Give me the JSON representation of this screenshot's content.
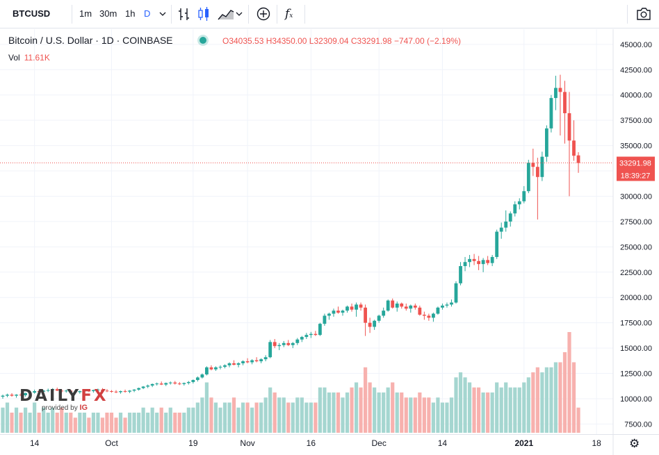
{
  "toolbar": {
    "symbol": "BTCUSD",
    "intervals": [
      "1m",
      "30m",
      "1h",
      "D"
    ],
    "active_interval": "D",
    "fx_label": "f"
  },
  "legend": {
    "title": "Bitcoin / U.S. Dollar · 1D · COINBASE",
    "open": "O34035.53",
    "high": "H34350.00",
    "low": "L32309.04",
    "close": "C33291.98",
    "change": "−747.00 (−2.19%)",
    "vol_label": "Vol",
    "vol_value": "11.61K"
  },
  "price_label": {
    "price": "33291.98",
    "countdown": "18:39:27"
  },
  "watermark": {
    "brand_main": "DAILY",
    "brand_fx": "FX",
    "sub": "provided by",
    "sub_brand": "IG"
  },
  "colors": {
    "up": "#26a69a",
    "down": "#ef5350",
    "vol_up": "#a5d6d0",
    "vol_down": "#f7b1ae"
  },
  "chart_data": {
    "type": "candlestick",
    "y_ticks": [
      "45000.00",
      "42500.00",
      "40000.00",
      "37500.00",
      "35000.00",
      "32500.00",
      "30000.00",
      "27500.00",
      "25000.00",
      "22500.00",
      "20000.00",
      "17500.00",
      "15000.00",
      "12500.00",
      "10000.00",
      "7500.00"
    ],
    "x_ticks": [
      "14",
      "Oct",
      "19",
      "Nov",
      "16",
      "Dec",
      "14",
      "2021",
      "18"
    ],
    "ylim": [
      6500,
      46500
    ],
    "last_price": 33291.98,
    "candles": [
      [
        10200,
        10400,
        10000,
        10300,
        5
      ],
      [
        10300,
        10500,
        10150,
        10400,
        6
      ],
      [
        10400,
        10550,
        10200,
        10300,
        4
      ],
      [
        10300,
        10450,
        10100,
        10400,
        5
      ],
      [
        10400,
        10550,
        10250,
        10350,
        4
      ],
      [
        10350,
        10600,
        10200,
        10550,
        5
      ],
      [
        10550,
        10700,
        10400,
        10600,
        4
      ],
      [
        10600,
        10900,
        10500,
        10750,
        6
      ],
      [
        10750,
        10900,
        10600,
        10700,
        4
      ],
      [
        10700,
        10850,
        10500,
        10800,
        5
      ],
      [
        10800,
        11000,
        10650,
        10850,
        4
      ],
      [
        10850,
        11050,
        10700,
        10950,
        5
      ],
      [
        10950,
        11100,
        10750,
        10800,
        4
      ],
      [
        10800,
        10950,
        10600,
        10750,
        5
      ],
      [
        10750,
        10900,
        10600,
        10800,
        4
      ],
      [
        10800,
        10900,
        10650,
        10700,
        4
      ],
      [
        10700,
        10850,
        10550,
        10650,
        3
      ],
      [
        10650,
        10800,
        10500,
        10750,
        4
      ],
      [
        10750,
        10900,
        10600,
        10800,
        4
      ],
      [
        10800,
        10950,
        10650,
        10750,
        3
      ],
      [
        10750,
        10900,
        10600,
        10850,
        4
      ],
      [
        10850,
        11000,
        10700,
        10900,
        4
      ],
      [
        10900,
        11050,
        10750,
        10800,
        3
      ],
      [
        10800,
        10950,
        10650,
        10750,
        4
      ],
      [
        10750,
        10850,
        10600,
        10700,
        4
      ],
      [
        10700,
        10850,
        10550,
        10650,
        3
      ],
      [
        10650,
        10800,
        10500,
        10750,
        4
      ],
      [
        10750,
        10900,
        10600,
        10700,
        3
      ],
      [
        10700,
        10850,
        10550,
        10800,
        4
      ],
      [
        10800,
        10950,
        10650,
        10900,
        4
      ],
      [
        10900,
        11100,
        10800,
        11050,
        4
      ],
      [
        11050,
        11250,
        10950,
        11200,
        5
      ],
      [
        11200,
        11400,
        11050,
        11300,
        4
      ],
      [
        11300,
        11500,
        11150,
        11450,
        5
      ],
      [
        11450,
        11600,
        11300,
        11500,
        4
      ],
      [
        11500,
        11700,
        11350,
        11400,
        5
      ],
      [
        11400,
        11600,
        11250,
        11550,
        4
      ],
      [
        11550,
        11700,
        11400,
        11600,
        5
      ],
      [
        11600,
        11750,
        11400,
        11500,
        4
      ],
      [
        11500,
        11650,
        11350,
        11450,
        4
      ],
      [
        11450,
        11600,
        11300,
        11550,
        4
      ],
      [
        11550,
        11750,
        11400,
        11650,
        5
      ],
      [
        11650,
        11900,
        11500,
        11850,
        5
      ],
      [
        11850,
        12200,
        11700,
        12100,
        6
      ],
      [
        12100,
        12500,
        12000,
        12400,
        7
      ],
      [
        12400,
        13200,
        12300,
        13100,
        10
      ],
      [
        13100,
        13300,
        12800,
        12900,
        7
      ],
      [
        12900,
        13200,
        12750,
        13100,
        6
      ],
      [
        13100,
        13300,
        12900,
        13150,
        5
      ],
      [
        13150,
        13400,
        13000,
        13300,
        6
      ],
      [
        13300,
        13600,
        13100,
        13500,
        6
      ],
      [
        13500,
        13800,
        13300,
        13350,
        7
      ],
      [
        13350,
        13600,
        13100,
        13500,
        5
      ],
      [
        13500,
        13800,
        13300,
        13700,
        6
      ],
      [
        13700,
        14000,
        13500,
        13600,
        6
      ],
      [
        13600,
        13900,
        13400,
        13800,
        5
      ],
      [
        13800,
        14100,
        13600,
        13700,
        6
      ],
      [
        13700,
        14000,
        13500,
        13900,
        6
      ],
      [
        13900,
        14300,
        13700,
        14100,
        7
      ],
      [
        14100,
        15800,
        14000,
        15600,
        9
      ],
      [
        15600,
        15900,
        15000,
        15200,
        8
      ],
      [
        15200,
        15500,
        14800,
        15300,
        7
      ],
      [
        15300,
        15700,
        15100,
        15500,
        7
      ],
      [
        15500,
        15800,
        15200,
        15300,
        6
      ],
      [
        15300,
        15600,
        15000,
        15500,
        6
      ],
      [
        15500,
        16000,
        15300,
        15850,
        7
      ],
      [
        15850,
        16200,
        15600,
        16100,
        7
      ],
      [
        16100,
        16500,
        15900,
        16300,
        6
      ],
      [
        16300,
        16600,
        16000,
        16400,
        6
      ],
      [
        16400,
        16700,
        16200,
        16300,
        6
      ],
      [
        16300,
        17500,
        16200,
        17400,
        9
      ],
      [
        17400,
        18400,
        17200,
        18200,
        9
      ],
      [
        18200,
        18500,
        17800,
        18400,
        8
      ],
      [
        18400,
        18900,
        18100,
        18700,
        8
      ],
      [
        18700,
        19100,
        18400,
        18500,
        8
      ],
      [
        18500,
        18800,
        18200,
        18700,
        7
      ],
      [
        18700,
        19200,
        18500,
        19100,
        8
      ],
      [
        19100,
        19400,
        18600,
        18800,
        9
      ],
      [
        18800,
        19500,
        18100,
        19300,
        10
      ],
      [
        19300,
        19500,
        18700,
        19000,
        9
      ],
      [
        19000,
        19300,
        16200,
        17500,
        13
      ],
      [
        17500,
        18000,
        16500,
        17100,
        10
      ],
      [
        17100,
        17800,
        16800,
        17700,
        9
      ],
      [
        17700,
        18300,
        17500,
        18200,
        8
      ],
      [
        18200,
        19000,
        18000,
        18700,
        8
      ],
      [
        18700,
        19800,
        18600,
        19700,
        9
      ],
      [
        19700,
        19900,
        18900,
        19000,
        10
      ],
      [
        19000,
        19600,
        18600,
        19400,
        8
      ],
      [
        19400,
        19500,
        18900,
        19100,
        8
      ],
      [
        19100,
        19400,
        18700,
        18900,
        7
      ],
      [
        18900,
        19300,
        18500,
        19200,
        7
      ],
      [
        19200,
        19400,
        18800,
        19000,
        7
      ],
      [
        19000,
        19200,
        18200,
        18300,
        8
      ],
      [
        18300,
        18600,
        17800,
        18200,
        7
      ],
      [
        18200,
        18400,
        17700,
        18000,
        7
      ],
      [
        18000,
        18500,
        17600,
        18400,
        6
      ],
      [
        18400,
        19100,
        18300,
        19000,
        7
      ],
      [
        19000,
        19400,
        18800,
        19200,
        6
      ],
      [
        19200,
        19500,
        19000,
        19300,
        6
      ],
      [
        19300,
        19800,
        19100,
        19500,
        7
      ],
      [
        19500,
        21600,
        19400,
        21400,
        11
      ],
      [
        21400,
        23500,
        21200,
        23100,
        12
      ],
      [
        23100,
        24000,
        22600,
        23500,
        11
      ],
      [
        23500,
        24200,
        23000,
        23800,
        10
      ],
      [
        23800,
        24300,
        23200,
        23600,
        9
      ],
      [
        23600,
        24100,
        22700,
        23300,
        9
      ],
      [
        23300,
        23900,
        22500,
        23700,
        8
      ],
      [
        23700,
        24100,
        23200,
        23400,
        8
      ],
      [
        23400,
        24200,
        23100,
        24000,
        8
      ],
      [
        24000,
        26700,
        23800,
        26500,
        10
      ],
      [
        26500,
        27400,
        25800,
        26900,
        9
      ],
      [
        26900,
        28600,
        26500,
        27500,
        10
      ],
      [
        27500,
        28500,
        27000,
        28300,
        9
      ],
      [
        28300,
        29500,
        28000,
        29200,
        9
      ],
      [
        29200,
        29800,
        28700,
        29500,
        9
      ],
      [
        29500,
        31000,
        29300,
        30500,
        10
      ],
      [
        30500,
        33600,
        30300,
        33300,
        11
      ],
      [
        33300,
        34700,
        32000,
        32900,
        12
      ],
      [
        32900,
        33800,
        27700,
        31900,
        13
      ],
      [
        31900,
        34400,
        31500,
        33900,
        12
      ],
      [
        33900,
        37000,
        33400,
        36700,
        13
      ],
      [
        36700,
        40000,
        36300,
        39700,
        13
      ],
      [
        39700,
        41900,
        38500,
        40700,
        14
      ],
      [
        40700,
        42000,
        36000,
        40300,
        14
      ],
      [
        40300,
        41400,
        35200,
        38200,
        16
      ],
      [
        38200,
        40300,
        30000,
        35500,
        20
      ],
      [
        35500,
        37500,
        33500,
        34000,
        14
      ],
      [
        34035.53,
        34350,
        32309.04,
        33291.98,
        5
      ]
    ]
  }
}
